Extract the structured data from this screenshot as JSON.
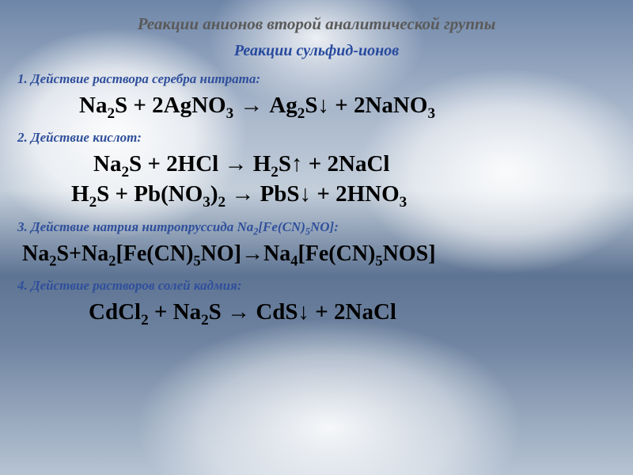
{
  "colors": {
    "title_gray": "#5a5a5a",
    "heading_blue": "#274a9e",
    "section_blue": "#2f4f9b",
    "equation_black": "#000000",
    "bg_sky_light": "#c3ceda",
    "bg_sky_dark": "#5e7493",
    "bg_cloud": "#ffffff"
  },
  "fonts": {
    "family": "Times New Roman",
    "title_size_pt": 21,
    "subtitle_size_pt": 20,
    "section_size_pt": 17,
    "equation_size_pt": 29,
    "equation_small_size_pt": 28
  },
  "title": "Реакции анионов второй аналитической группы",
  "subtitle": "Реакции сульфид-ионов",
  "s1": {
    "label": "1. Действие раствора серебра нитрата:",
    "lhs1": "Na",
    "sub1": "2",
    "lhs2": "S + 2AgNO",
    "sub2": "3",
    "arrow": " → ",
    "rhs1": "Ag",
    "sub3": "2",
    "rhs2": "S",
    "dn": "↓",
    "rhs3": " + 2NaNO",
    "sub4": "3"
  },
  "s2": {
    "label": "2. Действие кислот:",
    "eq1": {
      "a": "Na",
      "s1": "2",
      "b": "S + 2HCl ",
      "arrow": "→",
      "c": " H",
      "s2": "2",
      "d": "S",
      "up": "↑",
      "e": " + 2NaCl"
    },
    "eq2": {
      "a": "H",
      "s1": "2",
      "b": "S + Pb(NO",
      "s2": "3",
      "c": ")",
      "s3": "2",
      "d": " ",
      "arrow": "→",
      "e": " PbS",
      "dn": "↓",
      "f": " + 2HNO",
      "s4": "3"
    }
  },
  "s3": {
    "label_a": "3. Действие натрия нитропруссида Na",
    "label_sub1": "2",
    "label_b": "[Fe(CN)",
    "label_sub2": "5",
    "label_c": "NO]:",
    "eq": {
      "a": "Na",
      "s1": "2",
      "b": "S+Na",
      "s2": "2",
      "c": "[Fe(CN)",
      "s3": "5",
      "d": "NO]",
      "arrow": "→",
      "e": "Na",
      "s4": "4",
      "f": "[Fe(CN)",
      "s5": "5",
      "g": "NOS]"
    }
  },
  "s4": {
    "label": "4. Действие растворов солей кадмия:",
    "eq": {
      "a": "CdCl",
      "s1": "2",
      "b": " + Na",
      "s2": "2",
      "c": "S ",
      "arrow": "→",
      "d": " CdS",
      "dn": "↓",
      "e": " + 2NaCl"
    }
  }
}
